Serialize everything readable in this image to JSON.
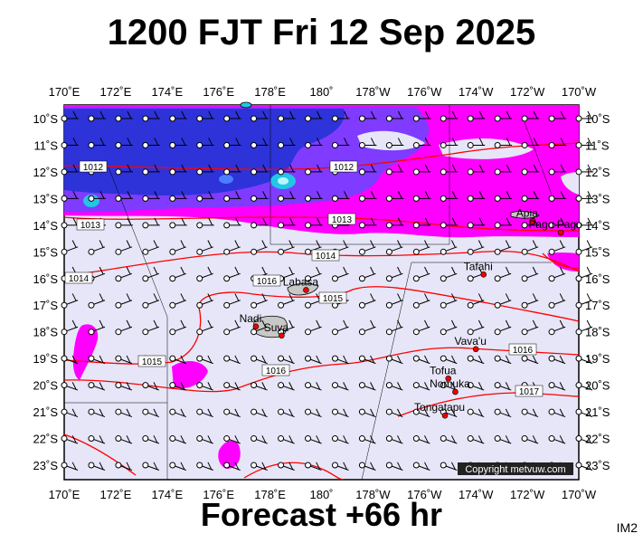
{
  "header": {
    "title": "1200 FJT Fri 12 Sep 2025"
  },
  "footer": {
    "forecast": "Forecast +66 hr",
    "code": "IM2",
    "copyright": "Copyright metvuw.com"
  },
  "axes": {
    "top_lon": [
      "170˚E",
      "172˚E",
      "174˚E",
      "176˚E",
      "178˚E",
      "180˚",
      "178˚W",
      "176˚W",
      "174˚W",
      "172˚W",
      "170˚W"
    ],
    "bottom_lon": [
      "170˚E",
      "172˚E",
      "174˚E",
      "176˚E",
      "178˚E",
      "180˚",
      "178˚W",
      "176˚W",
      "174˚W",
      "172˚W",
      "170˚W"
    ],
    "left_lat": [
      "10˚S",
      "11˚S",
      "12˚S",
      "13˚S",
      "14˚S",
      "15˚S",
      "16˚S",
      "17˚S",
      "18˚S",
      "19˚S",
      "20˚S",
      "21˚S",
      "22˚S",
      "23˚S"
    ],
    "right_lat": [
      "10˚S",
      "11˚S",
      "12˚S",
      "13˚S",
      "14˚S",
      "15˚S",
      "16˚S",
      "17˚S",
      "18˚S",
      "19˚S",
      "20˚S",
      "21˚S",
      "22˚S",
      "23˚S"
    ]
  },
  "places": [
    {
      "name": "Apia",
      "lon": -171.8,
      "lat": -13.85
    },
    {
      "name": "Pago Pago",
      "lon": -170.7,
      "lat": -14.28
    },
    {
      "name": "Tafahi",
      "lon": -173.7,
      "lat": -15.85
    },
    {
      "name": "Labasa",
      "lon": 179.4,
      "lat": -16.43
    },
    {
      "name": "Nadi",
      "lon": 177.45,
      "lat": -17.8
    },
    {
      "name": "Suva",
      "lon": 178.45,
      "lat": -18.14
    },
    {
      "name": "Vava'u",
      "lon": -174.0,
      "lat": -18.65
    },
    {
      "name": "Tofua",
      "lon": -175.07,
      "lat": -19.75
    },
    {
      "name": "Nomuka",
      "lon": -174.8,
      "lat": -20.25
    },
    {
      "name": "Tongatapu",
      "lon": -175.2,
      "lat": -21.14
    }
  ],
  "isobars": [
    "1012",
    "1012",
    "1013",
    "1013",
    "1014",
    "1014",
    "1015",
    "1015",
    "1016",
    "1016",
    "1016",
    "1017"
  ],
  "colors": {
    "background": "#e6e6f8",
    "isobar": "#ff0000",
    "rain_light": "#ff00ff",
    "rain_med": "#8833ff",
    "rain_heavy": "#3333dd",
    "land": "#c8c8c8"
  }
}
